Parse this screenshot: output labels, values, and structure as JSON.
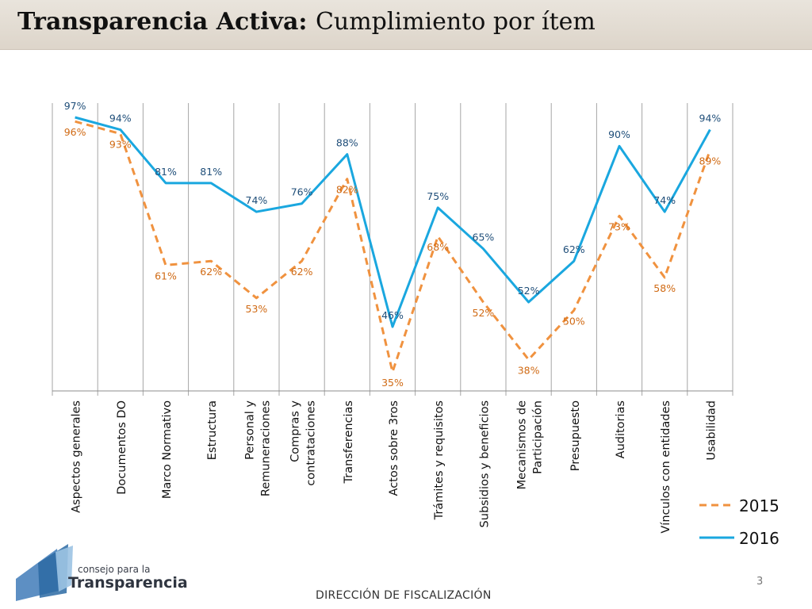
{
  "header": {
    "title_bold": "Transparencia Activa:",
    "title_normal": "Cumplimiento por ítem"
  },
  "chart_data": {
    "type": "line",
    "title": "",
    "xlabel": "",
    "ylabel": "",
    "ylim": [
      30,
      100
    ],
    "grid": "vertical category separators",
    "legend_position": "bottom-right",
    "categories": [
      "Aspectos generales",
      "Documentos DO",
      "Marco Normativo",
      "Estructura",
      "Personal y Remuneraciones",
      "Compras y contrataciones",
      "Transferencias",
      "Actos sobre 3ros",
      "Trámites y requisitos",
      "Subsidios y beneficios",
      "Mecanismos de Participación",
      "Presupuesto",
      "Auditorias",
      "Vínculos con entidades",
      "Usabilidad"
    ],
    "series": [
      {
        "name": "2015",
        "color": "#f0923f",
        "style": "dashed",
        "values": [
          96,
          93,
          61,
          62,
          53,
          62,
          82,
          35,
          68,
          52,
          38,
          50,
          73,
          58,
          89
        ]
      },
      {
        "name": "2016",
        "color": "#1aa7df",
        "style": "solid",
        "values": [
          97,
          94,
          81,
          81,
          74,
          76,
          88,
          46,
          75,
          65,
          52,
          62,
          90,
          74,
          94
        ]
      }
    ],
    "label_suffix": "%"
  },
  "logo": {
    "small_text": "consejo para la",
    "big_text": "Transparencia"
  },
  "page_number": "3",
  "footer": "DIRECCIÓN DE FISCALIZACIÓN"
}
